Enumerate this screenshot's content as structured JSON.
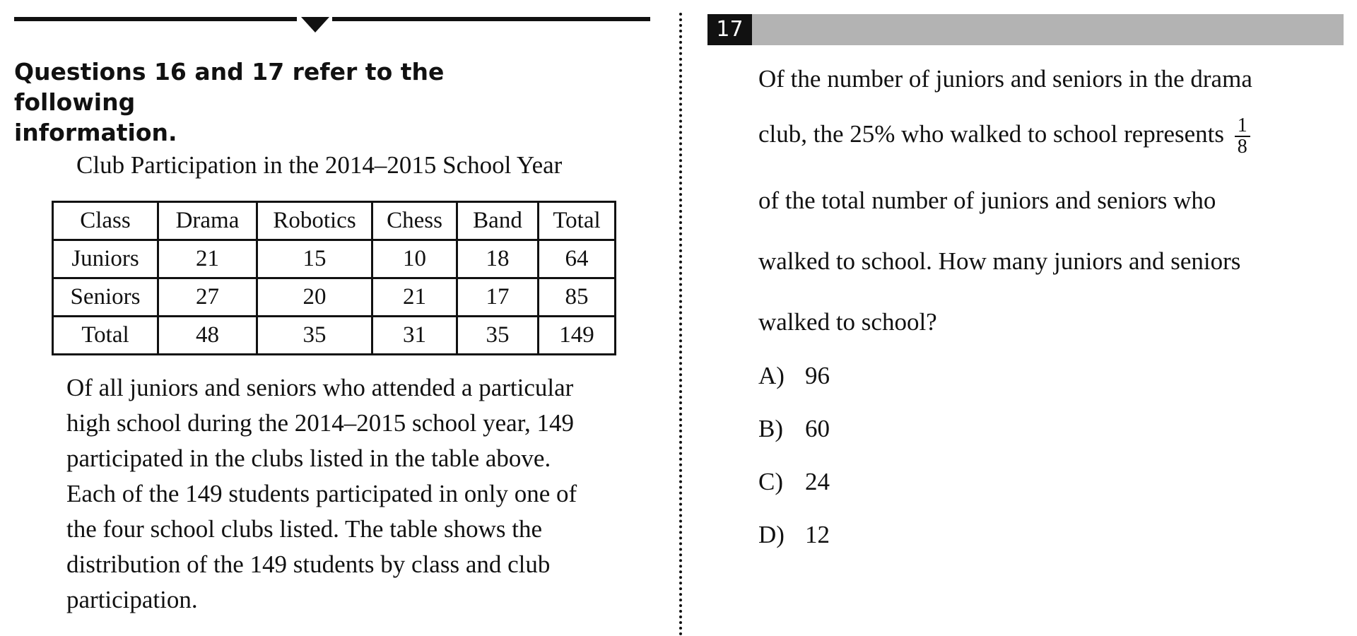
{
  "intro": {
    "line1": "Questions 16 and 17 refer to the following",
    "line2": "information."
  },
  "table": {
    "title": "Club Participation in the 2014–2015 School Year",
    "headers": [
      "Class",
      "Drama",
      "Robotics",
      "Chess",
      "Band",
      "Total"
    ],
    "rows": [
      [
        "Juniors",
        "21",
        "15",
        "10",
        "18",
        "64"
      ],
      [
        "Seniors",
        "27",
        "20",
        "21",
        "17",
        "85"
      ],
      [
        "Total",
        "48",
        "35",
        "31",
        "35",
        "149"
      ]
    ]
  },
  "passage": [
    "Of all juniors and seniors who attended a particular",
    "high school during the 2014–2015 school year, 149",
    "participated in the clubs listed in the table above.",
    "Each of the 149 students participated in only one of",
    "the four school clubs listed. The table shows the",
    "distribution of the 149 students by class and club",
    "participation."
  ],
  "question": {
    "number": "17",
    "line1": "Of the number of juniors and seniors in the drama",
    "line2": "club, the 25% who walked to school represents",
    "fraction_numerator": "1",
    "fraction_denominator": "8",
    "line3": "of the total number of juniors and seniors who",
    "line4": "walked to school. How many juniors and seniors",
    "line5": "walked to school?",
    "choices": [
      {
        "letter": "A)",
        "value": "96"
      },
      {
        "letter": "B)",
        "value": "60"
      },
      {
        "letter": "C)",
        "value": "24"
      },
      {
        "letter": "D)",
        "value": "12"
      }
    ]
  }
}
